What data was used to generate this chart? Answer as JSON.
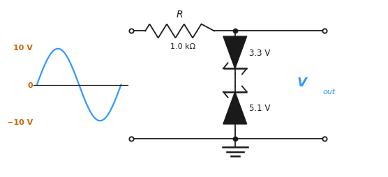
{
  "bg_color": "#ffffff",
  "fig_width": 5.56,
  "fig_height": 2.55,
  "dpi": 100,
  "sine_color": "#3399ff",
  "vout_color": "#3399ff",
  "circuit_color": "#1a1a1a",
  "label_color": "#cc6600",
  "R_label": "R",
  "R_value": "1.0 kΩ",
  "Z1_value": "3.3 V",
  "Z2_value": "5.1 V",
  "V_pos": "10 V",
  "V_zero": "0",
  "V_neg": "−10 V",
  "Vout_label": "V",
  "Vout_sub": "out"
}
